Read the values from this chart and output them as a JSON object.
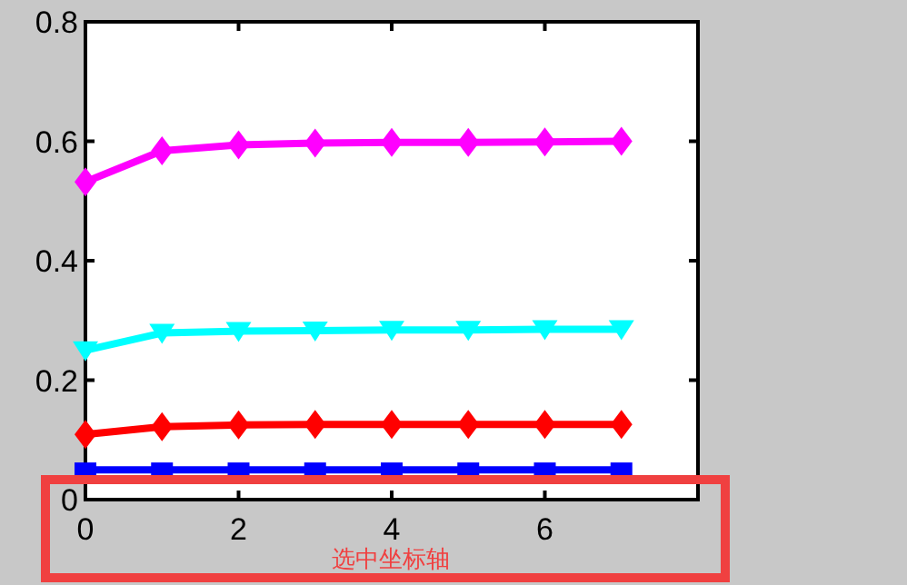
{
  "chart_data": {
    "type": "line",
    "x": [
      0,
      1,
      2,
      3,
      4,
      5,
      6,
      7
    ],
    "xlim": [
      0,
      8
    ],
    "xticks": [
      0,
      2,
      4,
      6
    ],
    "ylim": [
      0,
      0.8
    ],
    "yticks": [
      0,
      0.2,
      0.4,
      0.6,
      0.8
    ],
    "grid": false,
    "line_style": "solid",
    "series": [
      {
        "color": "#0000ff",
        "marker": "square",
        "values": [
          0.05,
          0.05,
          0.05,
          0.05,
          0.05,
          0.05,
          0.05,
          0.05
        ]
      },
      {
        "color": "#ff0000",
        "marker": "diamond",
        "values": [
          0.109,
          0.122,
          0.125,
          0.126,
          0.126,
          0.126,
          0.126,
          0.126
        ]
      },
      {
        "color": "#00ffff",
        "marker": "triangle",
        "values": [
          0.25,
          0.279,
          0.282,
          0.283,
          0.284,
          0.284,
          0.285,
          0.285
        ]
      },
      {
        "color": "#ff00ff",
        "marker": "diamond",
        "values": [
          0.532,
          0.584,
          0.594,
          0.597,
          0.598,
          0.598,
          0.599,
          0.6
        ]
      }
    ],
    "annotations": [
      "选中坐标轴"
    ]
  }
}
